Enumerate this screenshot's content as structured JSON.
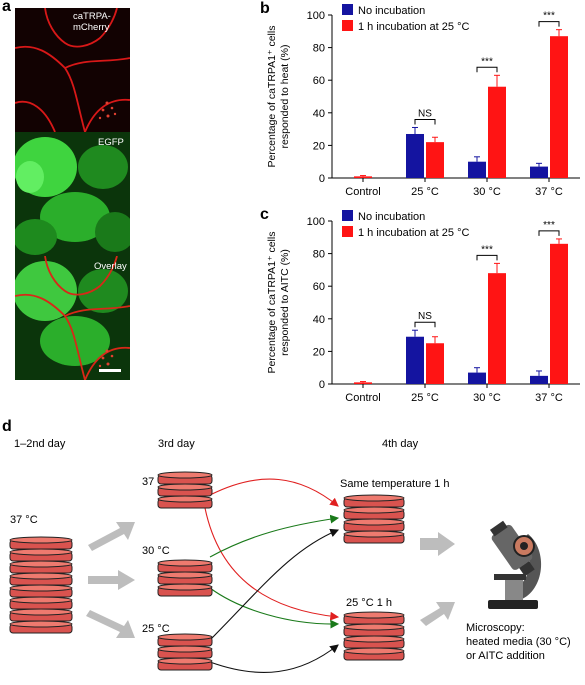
{
  "panel_labels": {
    "a": "a",
    "b": "b",
    "c": "c",
    "d": "d"
  },
  "panel_a": {
    "images": [
      {
        "label": "caTRPA-mCherry",
        "color": "#d01818"
      },
      {
        "label": "EGFP",
        "color": "#26b428"
      },
      {
        "label": "Overlay",
        "color": "#c03818"
      }
    ]
  },
  "chart_data": [
    {
      "type": "bar",
      "panel": "b",
      "ylabel_line1": "Percentage of caTRPA1⁺ cells",
      "ylabel_line2": "responded to heat (%)",
      "categories": [
        "Control",
        "25 °C",
        "30 °C",
        "37 °C"
      ],
      "ylim": [
        0,
        100
      ],
      "yticks": [
        0,
        20,
        40,
        60,
        80,
        100
      ],
      "legend_position": "top-left",
      "series": [
        {
          "name": "No incubation",
          "color": "#1414a0",
          "values": [
            null,
            27,
            10,
            7
          ],
          "errors": [
            null,
            4,
            3,
            2
          ]
        },
        {
          "name": "1 h incubation at 25 °C",
          "color": "#ff1414",
          "values": [
            1,
            22,
            56,
            87
          ],
          "errors": [
            0.5,
            3,
            7,
            4
          ]
        }
      ],
      "significance": [
        {
          "category_index": 1,
          "label": "NS"
        },
        {
          "category_index": 2,
          "label": "***"
        },
        {
          "category_index": 3,
          "label": "***"
        }
      ]
    },
    {
      "type": "bar",
      "panel": "c",
      "ylabel_line1": "Percentage of caTRPA1⁺ cells",
      "ylabel_line2": "responded to AITC (%)",
      "categories": [
        "Control",
        "25 °C",
        "30 °C",
        "37 °C"
      ],
      "ylim": [
        0,
        100
      ],
      "yticks": [
        0,
        20,
        40,
        60,
        80,
        100
      ],
      "legend_position": "top-left",
      "series": [
        {
          "name": "No incubation",
          "color": "#1414a0",
          "values": [
            null,
            29,
            7,
            5
          ],
          "errors": [
            null,
            4,
            3,
            3
          ]
        },
        {
          "name": "1 h incubation at 25 °C",
          "color": "#ff1414",
          "values": [
            1,
            25,
            68,
            86
          ],
          "errors": [
            0.5,
            4,
            6,
            3
          ]
        }
      ],
      "significance": [
        {
          "category_index": 1,
          "label": "NS"
        },
        {
          "category_index": 2,
          "label": "***"
        },
        {
          "category_index": 3,
          "label": "***"
        }
      ]
    }
  ],
  "panel_d": {
    "days": [
      "1–2nd day",
      "3rd day",
      "4th day"
    ],
    "start_temp": "37 °C",
    "day3_temps": [
      "37 °C",
      "30 °C",
      "25 °C"
    ],
    "outcome_same": "Same temperature 1 h",
    "outcome_25": "25 °C 1 h",
    "microscopy_line1": "Microscopy:",
    "microscopy_line2": "heated media (30 °C)",
    "microscopy_line3": "or AITC addition",
    "arrow_colors": {
      "from37": "#e02020",
      "from30": "#1a7a1a",
      "from25": "#111111"
    }
  }
}
